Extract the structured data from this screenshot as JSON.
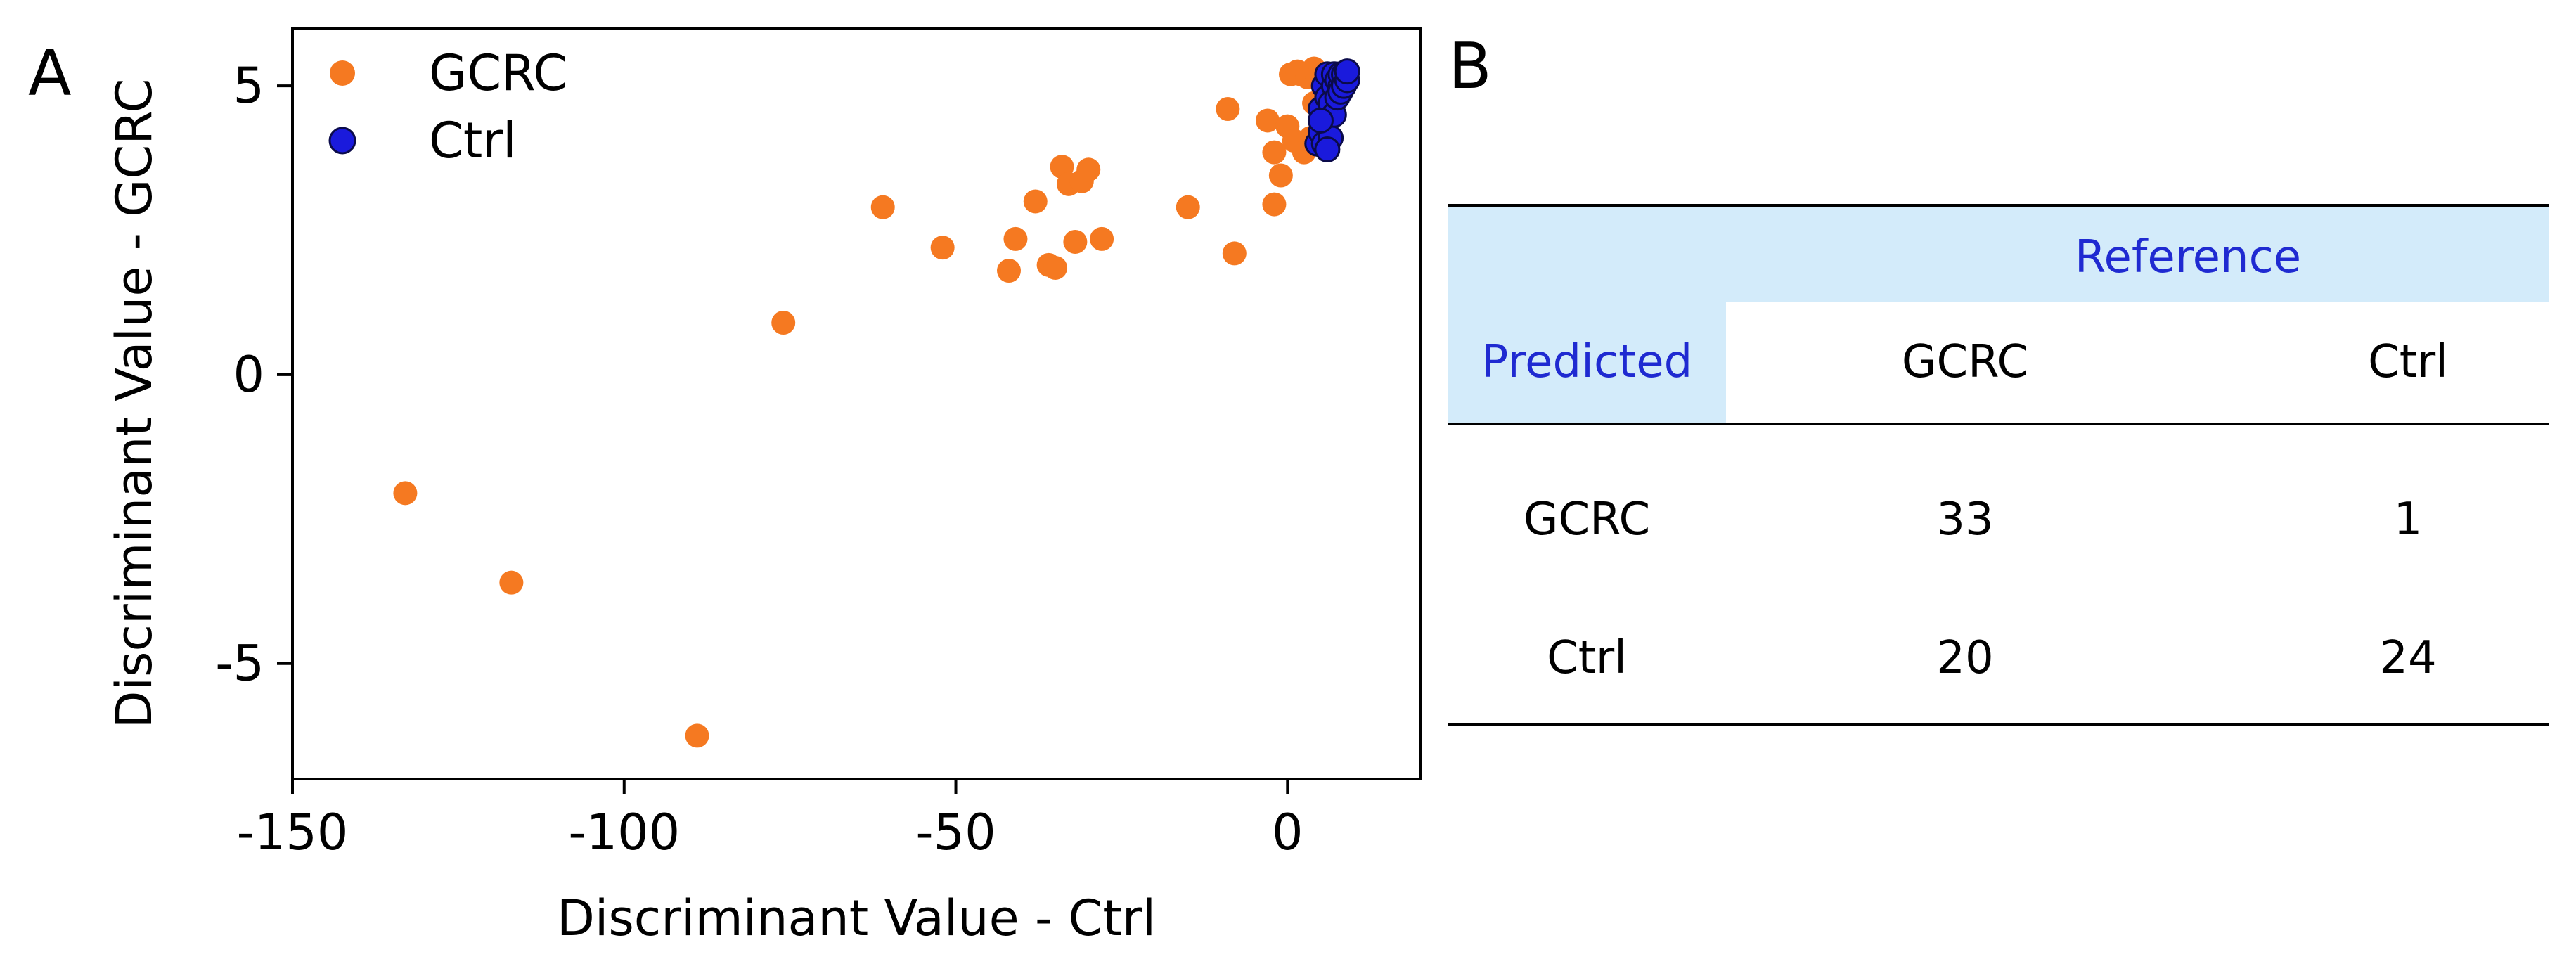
{
  "panels": {
    "a": "A",
    "b": "B"
  },
  "colors": {
    "gcrc": "#f57921",
    "ctrl": "#1a1adc",
    "ctrl_edge": "#0b0b4a",
    "header_bg": "#d3ebfa",
    "header_text": "#1f2ad1"
  },
  "chart_data": {
    "type": "scatter",
    "title": "",
    "xlabel": "Discriminant Value - Ctrl",
    "ylabel": "Discriminant Value - GCRC",
    "xlim": [
      -150,
      20
    ],
    "ylim": [
      -7,
      6
    ],
    "xticks": [
      -150,
      -100,
      -50,
      0
    ],
    "yticks": [
      -5,
      0,
      5
    ],
    "legend_position": "top-left",
    "series": [
      {
        "name": "GCRC",
        "x": [
          -133,
          -117,
          -89,
          -76,
          -61,
          -52,
          -42,
          -41,
          -38,
          -36,
          -35,
          -34,
          -33,
          -32,
          -31,
          -30,
          -28,
          -15,
          -9,
          -8,
          -3,
          -2,
          -2,
          -1,
          0,
          0.5,
          1,
          1.5,
          2,
          2.5,
          3,
          3.5,
          4,
          4,
          4.5,
          5
        ],
        "y": [
          -2.05,
          -3.6,
          -6.25,
          0.9,
          2.9,
          2.2,
          1.8,
          2.35,
          3.0,
          1.9,
          1.85,
          3.6,
          3.3,
          2.3,
          3.35,
          3.55,
          2.35,
          2.9,
          4.6,
          2.1,
          4.4,
          3.85,
          2.95,
          3.45,
          4.3,
          5.2,
          4.05,
          5.25,
          5.2,
          3.85,
          5.15,
          4.1,
          5.3,
          4.7,
          5.15,
          4.25
        ]
      },
      {
        "name": "Ctrl",
        "x": [
          4.5,
          5,
          5,
          5.5,
          5.5,
          6,
          6,
          6,
          6.5,
          6.5,
          7,
          7,
          7,
          7.5,
          7.5,
          8,
          8,
          8,
          8.5,
          8.5,
          9,
          9,
          6,
          5
        ],
        "y": [
          4.0,
          4.2,
          4.6,
          4.0,
          5.0,
          4.4,
          4.8,
          5.2,
          4.1,
          4.7,
          4.5,
          5.0,
          5.2,
          4.8,
          5.1,
          5.0,
          5.2,
          4.9,
          5.2,
          5.0,
          5.1,
          5.25,
          3.9,
          4.4
        ]
      }
    ]
  },
  "table": {
    "reference_label": "Reference",
    "predicted_label": "Predicted",
    "columns": [
      "GCRC",
      "Ctrl"
    ],
    "rows": [
      {
        "label": "GCRC",
        "values": [
          33,
          1
        ]
      },
      {
        "label": "Ctrl",
        "values": [
          20,
          24
        ]
      }
    ]
  }
}
